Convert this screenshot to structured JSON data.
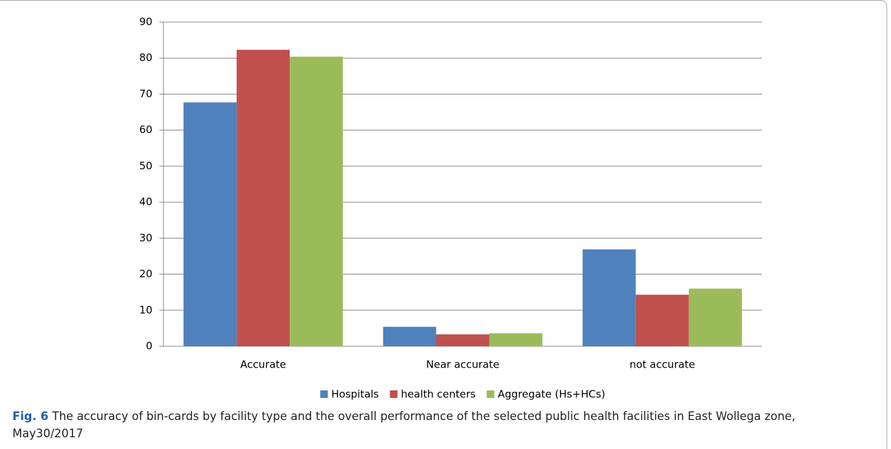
{
  "chart_data": {
    "type": "bar",
    "categories": [
      "Accurate",
      "Near accurate",
      "not accurate"
    ],
    "series": [
      {
        "name": "Hospitals",
        "color": "#4f81bd",
        "values": [
          67.7,
          5.4,
          26.9
        ]
      },
      {
        "name": "health centers",
        "color": "#c0504d",
        "values": [
          82.3,
          3.3,
          14.3
        ]
      },
      {
        "name": "Aggregate (Hs+HCs)",
        "color": "#9bbb59",
        "values": [
          80.4,
          3.6,
          16.0
        ]
      }
    ],
    "ylim": [
      0,
      90
    ],
    "yticks": [
      0,
      10,
      20,
      30,
      40,
      50,
      60,
      70,
      80,
      90
    ],
    "grid": true,
    "legend": "bottom"
  },
  "caption": {
    "label": "Fig. 6",
    "text": "The accuracy of bin-cards by facility type and the overall performance of the selected public health facilities in East Wollega zone, May30/2017"
  }
}
